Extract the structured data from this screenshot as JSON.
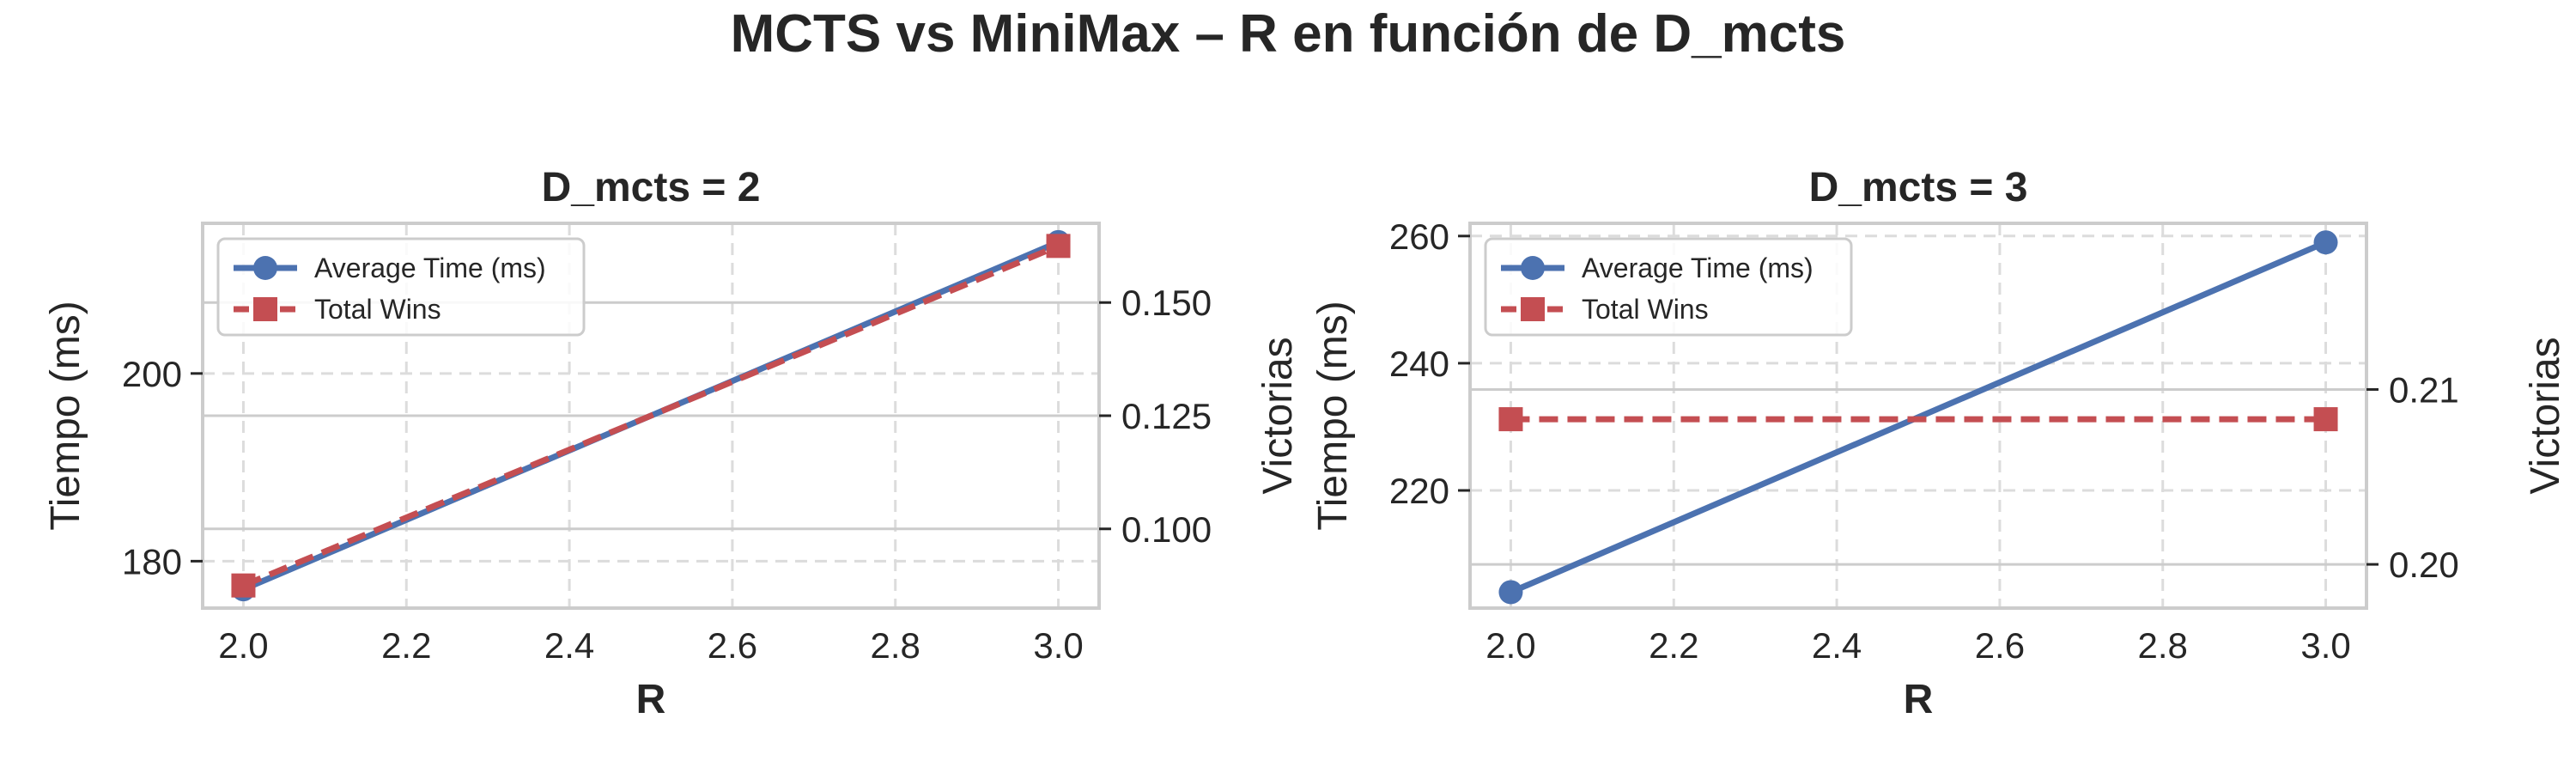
{
  "figure": {
    "title": "MCTS vs MiniMax – R en función de D_mcts"
  },
  "colors": {
    "avg_time": "#4c72b0",
    "total_wins": "#c44e52",
    "grid": "#dcdcdc",
    "twin_grid": "#cccccc",
    "frame": "#cccccc"
  },
  "chart_data": [
    {
      "type": "line",
      "title": "D_mcts = 2",
      "xlabel": "R",
      "ylabel": "Tiempo (ms)",
      "y2label": "Victorias",
      "xlim": [
        1.95,
        3.05
      ],
      "ylim": [
        175,
        216
      ],
      "y2lim": [
        0.0825,
        0.1675
      ],
      "x_ticks": [
        2.0,
        2.2,
        2.4,
        2.6,
        2.8,
        3.0
      ],
      "x_tick_labels": [
        "2.0",
        "2.2",
        "2.4",
        "2.6",
        "2.8",
        "3.0"
      ],
      "y_ticks": [
        180,
        200
      ],
      "y_tick_labels": [
        "180",
        "200"
      ],
      "y2_ticks": [
        0.1,
        0.125,
        0.15
      ],
      "y2_tick_labels": [
        "0.100",
        "0.125",
        "0.150"
      ],
      "legend_position": "upper left",
      "series": [
        {
          "name": "Average Time (ms)",
          "axis": "left",
          "marker": "circle",
          "linestyle": "solid",
          "x": [
            2.0,
            3.0
          ],
          "y": [
            177,
            214
          ]
        },
        {
          "name": "Total Wins",
          "axis": "right",
          "marker": "square",
          "linestyle": "dashed",
          "x": [
            2.0,
            3.0
          ],
          "y": [
            0.0875,
            0.1625
          ]
        }
      ]
    },
    {
      "type": "line",
      "title": "D_mcts = 3",
      "xlabel": "R",
      "ylabel": "Tiempo (ms)",
      "y2label": "Victorias",
      "xlim": [
        1.95,
        3.05
      ],
      "ylim": [
        201.5,
        262
      ],
      "y2lim": [
        0.1975,
        0.2195
      ],
      "x_ticks": [
        2.0,
        2.2,
        2.4,
        2.6,
        2.8,
        3.0
      ],
      "x_tick_labels": [
        "2.0",
        "2.2",
        "2.4",
        "2.6",
        "2.8",
        "3.0"
      ],
      "y_ticks": [
        220,
        240,
        260
      ],
      "y_tick_labels": [
        "220",
        "240",
        "260"
      ],
      "y2_ticks": [
        0.2,
        0.21
      ],
      "y2_tick_labels": [
        "0.20",
        "0.21"
      ],
      "legend_position": "upper left",
      "series": [
        {
          "name": "Average Time (ms)",
          "axis": "left",
          "marker": "circle",
          "linestyle": "solid",
          "x": [
            2.0,
            3.0
          ],
          "y": [
            204,
            259
          ]
        },
        {
          "name": "Total Wins",
          "axis": "right",
          "marker": "square",
          "linestyle": "dashed",
          "x": [
            2.0,
            3.0
          ],
          "y": [
            0.2083,
            0.2083
          ]
        }
      ]
    }
  ]
}
